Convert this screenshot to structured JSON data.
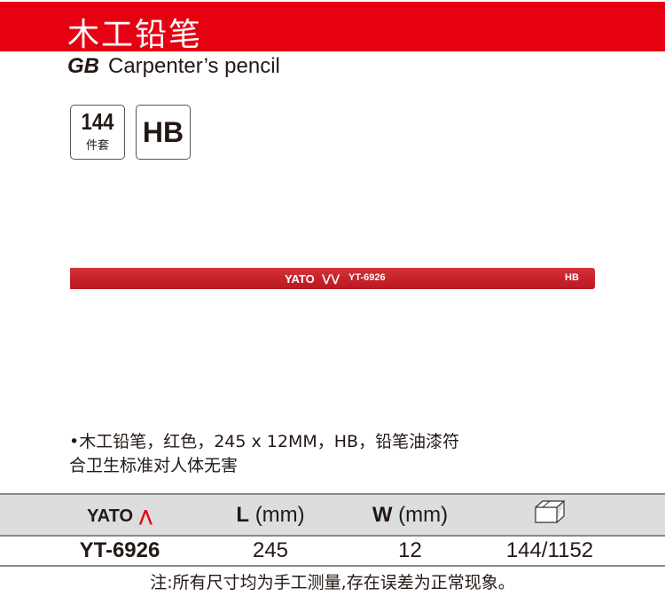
{
  "header": {
    "title": "木工铅笔"
  },
  "subtitle": {
    "standard": "GB",
    "name": "Carpenter’s pencil"
  },
  "badges": [
    {
      "value": "144",
      "unit": "件套"
    },
    {
      "value": "HB"
    }
  ],
  "pencil": {
    "brand": "YATO",
    "model": "YT-6926",
    "grade": "HB",
    "color": "#c8222b"
  },
  "description": [
    "•木工铅笔，红色，245 x 12MM，HB，铅笔油漆符",
    "合卫生标准对人体无害"
  ],
  "table": {
    "headers": {
      "brand": "YATO",
      "length": "L",
      "length_unit": "(mm)",
      "width": "W",
      "width_unit": "(mm)",
      "pack": "box-icon"
    },
    "rows": [
      {
        "model": "YT-6926",
        "length": "245",
        "width": "12",
        "pack": "144/1152"
      }
    ]
  },
  "note": "注:所有尺寸均为手工测量,存在误差为正常现象。",
  "colors": {
    "brand_red": "#e60012",
    "header_gray": "#dcdddd"
  }
}
